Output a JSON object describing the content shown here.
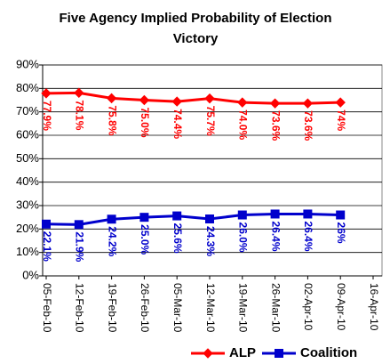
{
  "chart_data": {
    "type": "line",
    "title": "Five Agency Implied Probability of Election Victory",
    "title_lines": [
      "Five Agency Implied Probability of Election",
      "Victory"
    ],
    "categories": [
      "05-Feb-10",
      "12-Feb-10",
      "19-Feb-10",
      "26-Feb-10",
      "05-Mar-10",
      "12-Mar-10",
      "19-Mar-10",
      "26-Mar-10",
      "02-Apr-10",
      "09-Apr-10",
      "16-Apr-10"
    ],
    "series": [
      {
        "name": "ALP",
        "color": "#ff0000",
        "marker": "diamond",
        "values": [
          77.9,
          78.1,
          75.8,
          75.0,
          74.4,
          75.7,
          74.0,
          73.6,
          73.6,
          74,
          null
        ],
        "value_labels": [
          "77.9%",
          "78.1%",
          "75.8%",
          "75.0%",
          "74.4%",
          "75.7%",
          "74.0%",
          "73.6%",
          "73.6%",
          "74%",
          null
        ]
      },
      {
        "name": "Coalition",
        "color": "#0000cc",
        "marker": "square",
        "values": [
          22.1,
          21.9,
          24.2,
          25.0,
          25.6,
          24.3,
          26.0,
          26.4,
          26.4,
          26,
          null
        ],
        "value_labels": [
          "22.1%",
          "21.9%",
          "24.2%",
          "25.0%",
          "25.6%",
          "24.3%",
          "26.0%",
          "26.4%",
          "26.4%",
          "26%",
          null
        ]
      }
    ],
    "ylim": [
      0,
      90
    ],
    "yticks": [
      {
        "value": 0,
        "label": "0%"
      },
      {
        "value": 10,
        "label": "10%"
      },
      {
        "value": 20,
        "label": "20%"
      },
      {
        "value": 30,
        "label": "30%"
      },
      {
        "value": 40,
        "label": "40%"
      },
      {
        "value": 50,
        "label": "50%"
      },
      {
        "value": 60,
        "label": "60%"
      },
      {
        "value": 70,
        "label": "70%"
      },
      {
        "value": 80,
        "label": "80%"
      },
      {
        "value": 90,
        "label": "90%"
      }
    ],
    "grid": true,
    "legend": "bottom"
  }
}
